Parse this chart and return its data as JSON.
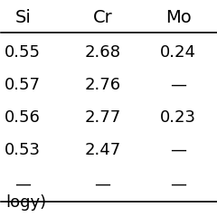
{
  "headers": [
    "Si",
    "Cr",
    "Mo"
  ],
  "rows": [
    [
      "0.55",
      "2.68",
      "0.24"
    ],
    [
      "0.57",
      "2.76",
      "—"
    ],
    [
      "0.56",
      "2.77",
      "0.23"
    ],
    [
      "0.53",
      "2.47",
      "—"
    ],
    [
      "—",
      "—",
      "—"
    ]
  ],
  "footer_text": "logy)",
  "bg_color": "#ffffff",
  "text_color": "#000000",
  "header_fontsize": 14,
  "cell_fontsize": 13,
  "footer_fontsize": 13
}
